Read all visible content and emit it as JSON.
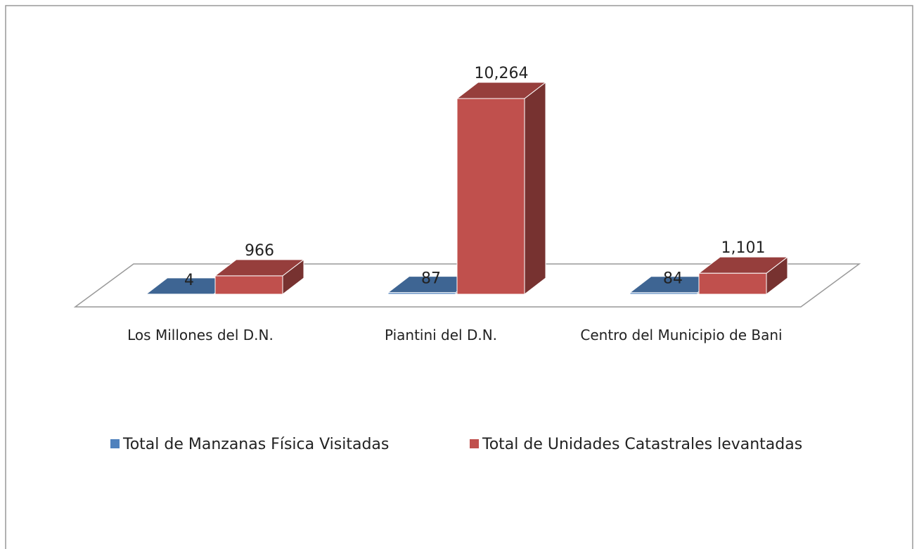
{
  "chart_data": {
    "type": "bar3d",
    "categories": [
      "Los Millones del D.N.",
      "Piantini del D.N.",
      "Centro del Municipio de Bani"
    ],
    "series": [
      {
        "name": "Total de Manzanas Física Visitadas",
        "color": "#4f81bd",
        "values": [
          4,
          87,
          84
        ],
        "value_labels": [
          "4",
          "87",
          "84"
        ]
      },
      {
        "name": "Total de Unidades Catastrales levantadas",
        "color": "#c0504d",
        "values": [
          966,
          10264,
          1101
        ],
        "value_labels": [
          "966",
          "10,264",
          "1,101"
        ]
      }
    ],
    "legend": "bottom"
  }
}
